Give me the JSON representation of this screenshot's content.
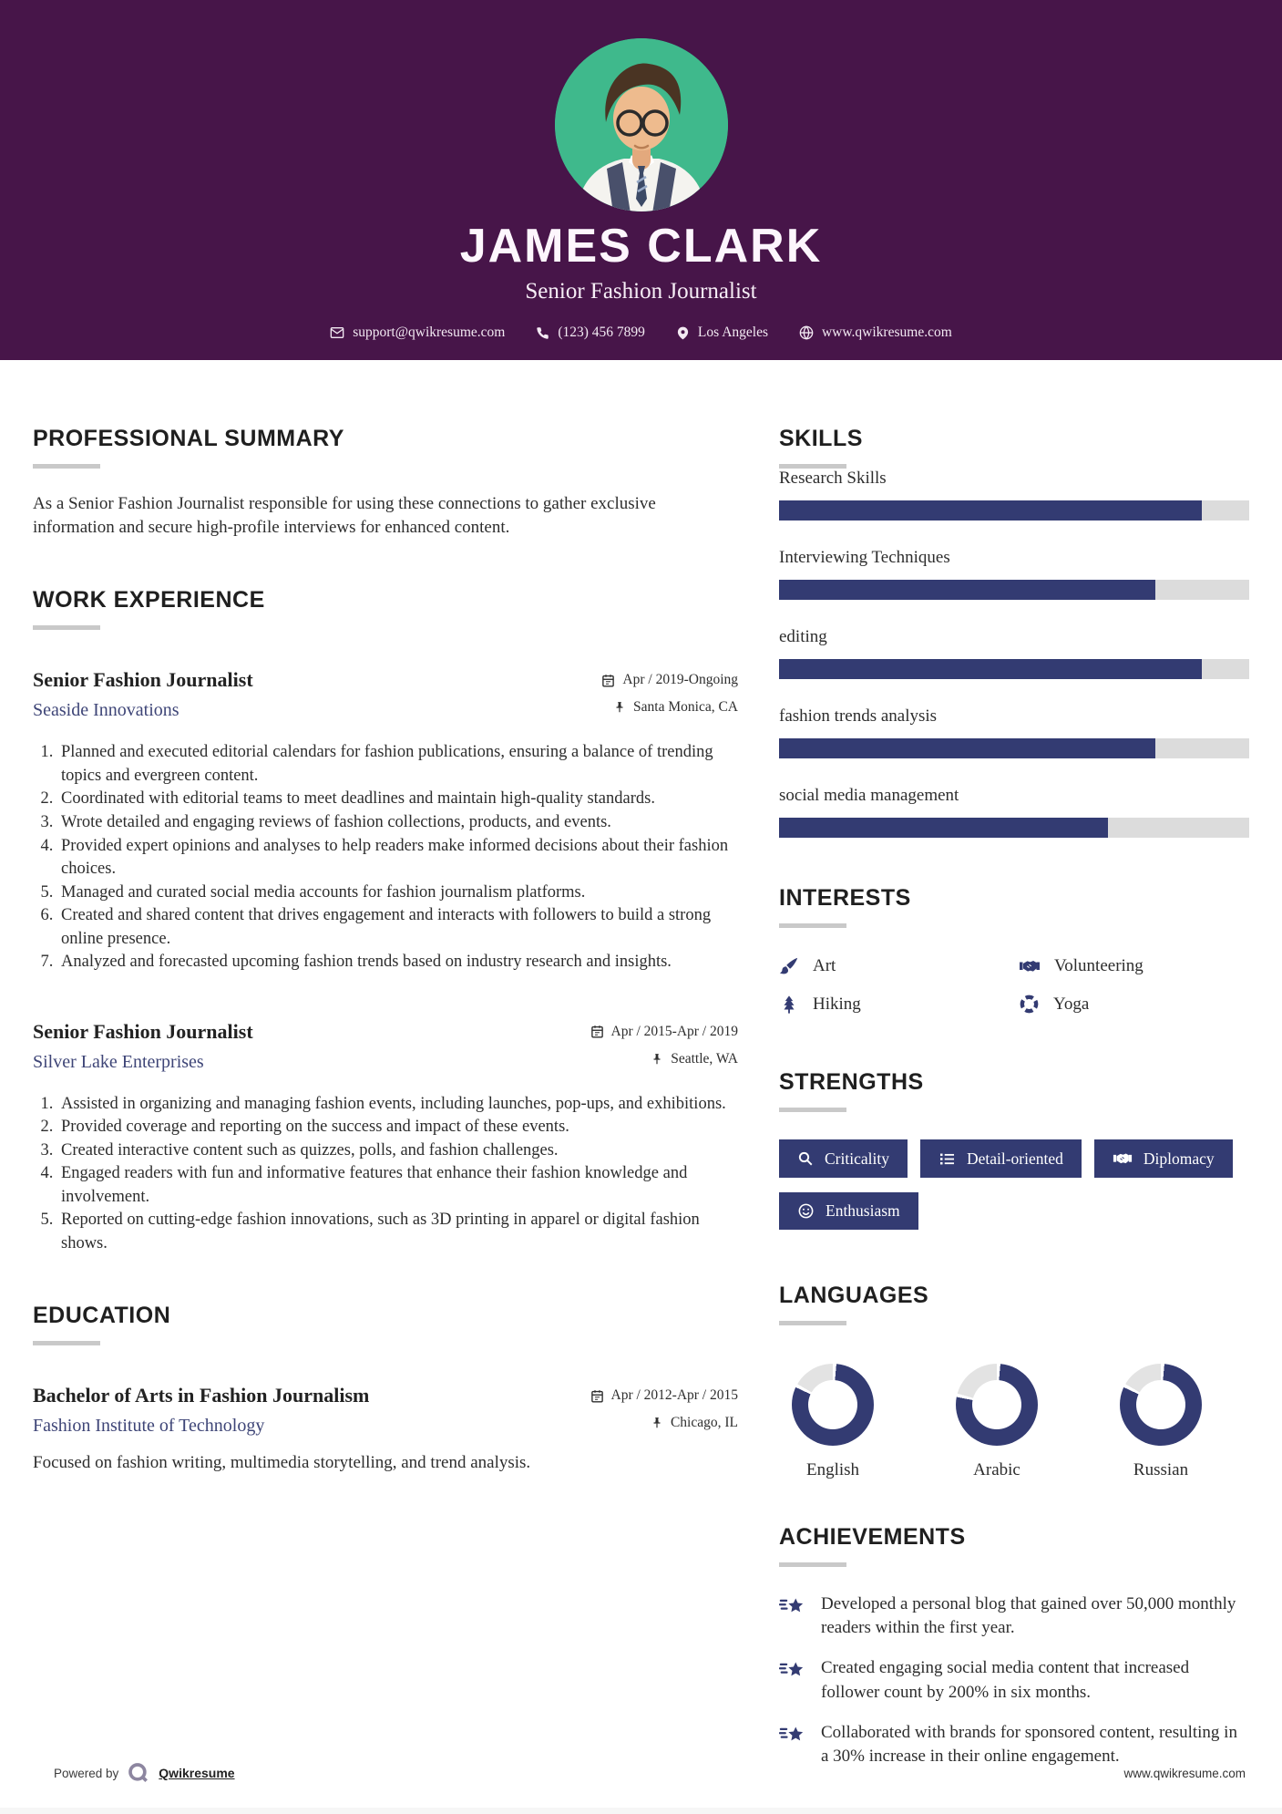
{
  "colors": {
    "header_bg": "#471549",
    "accent": "#333b72",
    "bar_track": "#dcdcdc",
    "donut_track": "#e3e3e3",
    "company_link": "#3e4577",
    "avatar_bg": "#3fb98c"
  },
  "header": {
    "name": "JAMES CLARK",
    "title": "Senior Fashion Journalist",
    "contact": [
      {
        "icon": "mail-icon",
        "text": "support@qwikresume.com"
      },
      {
        "icon": "phone-icon",
        "text": "(123) 456 7899"
      },
      {
        "icon": "map-marker-icon",
        "text": "Los Angeles"
      },
      {
        "icon": "globe-icon",
        "text": "www.qwikresume.com"
      }
    ]
  },
  "summary": {
    "heading": "PROFESSIONAL SUMMARY",
    "text": "As a Senior Fashion Journalist responsible for using these connections to gather exclusive information and secure high-profile interviews for enhanced content."
  },
  "work": {
    "heading": "WORK EXPERIENCE",
    "jobs": [
      {
        "title": "Senior Fashion Journalist",
        "company": "Seaside Innovations",
        "dates": "Apr / 2019-Ongoing",
        "location": "Santa Monica, CA",
        "items": [
          "Planned and executed editorial calendars for fashion publications, ensuring a balance of trending topics and evergreen content.",
          "Coordinated with editorial teams to meet deadlines and maintain high-quality standards.",
          "Wrote detailed and engaging reviews of fashion collections, products, and events.",
          "Provided expert opinions and analyses to help readers make informed decisions about their fashion choices.",
          "Managed and curated social media accounts for fashion journalism platforms.",
          "Created and shared content that drives engagement and interacts with followers to build a strong online presence.",
          "Analyzed and forecasted upcoming fashion trends based on industry research and insights."
        ]
      },
      {
        "title": "Senior Fashion Journalist",
        "company": "Silver Lake Enterprises",
        "dates": "Apr / 2015-Apr / 2019",
        "location": "Seattle, WA",
        "items": [
          "Assisted in organizing and managing fashion events, including launches, pop-ups, and exhibitions.",
          "Provided coverage and reporting on the success and impact of these events.",
          "Created interactive content such as quizzes, polls, and fashion challenges.",
          "Engaged readers with fun and informative features that enhance their fashion knowledge and involvement.",
          "Reported on cutting-edge fashion innovations, such as 3D printing in apparel or digital fashion shows."
        ]
      }
    ]
  },
  "education": {
    "heading": "EDUCATION",
    "degree": "Bachelor of Arts in Fashion Journalism",
    "school": "Fashion Institute of Technology",
    "dates": "Apr / 2012-Apr / 2015",
    "location": "Chicago, IL",
    "description": "Focused on fashion writing, multimedia storytelling, and trend analysis."
  },
  "skills": {
    "heading": "SKILLS",
    "items": [
      {
        "label": "Research Skills",
        "level": 90
      },
      {
        "label": "Interviewing Techniques",
        "level": 80
      },
      {
        "label": "editing",
        "level": 90
      },
      {
        "label": "fashion trends analysis",
        "level": 80
      },
      {
        "label": "social media management",
        "level": 70
      }
    ]
  },
  "interests": {
    "heading": "INTERESTS",
    "items": [
      {
        "icon": "paintbrush-icon",
        "label": "Art"
      },
      {
        "icon": "handshake-icon",
        "label": "Volunteering"
      },
      {
        "icon": "pine-tree-icon",
        "label": "Hiking"
      },
      {
        "icon": "life-ring-icon",
        "label": "Yoga"
      }
    ]
  },
  "strengths": {
    "heading": "STRENGTHS",
    "items": [
      {
        "icon": "magnifier-icon",
        "label": "Criticality"
      },
      {
        "icon": "list-icon",
        "label": "Detail-oriented"
      },
      {
        "icon": "handshake-icon",
        "label": "Diplomacy"
      },
      {
        "icon": "smiley-icon",
        "label": "Enthusiasm"
      }
    ]
  },
  "languages": {
    "heading": "LANGUAGES",
    "items": [
      {
        "label": "English",
        "level": 82
      },
      {
        "label": "Arabic",
        "level": 78
      },
      {
        "label": "Russian",
        "level": 82
      }
    ]
  },
  "achievements": {
    "heading": "ACHIEVEMENTS",
    "items": [
      "Developed a personal blog that gained over 50,000 monthly readers within the first year.",
      "Created engaging social media content that increased follower count by 200% in six months.",
      "Collaborated with brands for sponsored content, resulting in a 30% increase in their online engagement."
    ]
  },
  "footer": {
    "powered_by": "Powered by",
    "brand": "Qwikresume",
    "site": "www.qwikresume.com"
  }
}
